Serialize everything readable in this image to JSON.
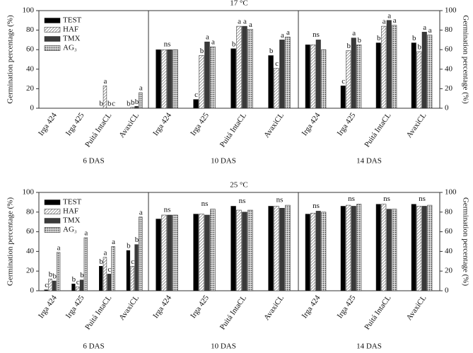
{
  "chart_data": [
    {
      "type": "bar",
      "xlabel": "6 DAS",
      "ylabel": "Germination percentage (%)",
      "y_axis_side": "left",
      "legend": "upper left",
      "categories": [
        "Irga 424",
        "Irga 425",
        "Puitá IntaCL",
        "AvaxiCL"
      ],
      "series": [
        {
          "name": "TEST",
          "color": "#000000",
          "values": [
            0,
            0,
            0,
            0
          ],
          "letters": [
            null,
            null,
            "b",
            "b"
          ]
        },
        {
          "name": "HAF",
          "color": "#c4c4c4",
          "values": [
            0,
            0,
            23,
            1
          ],
          "letters": [
            null,
            null,
            "a",
            "b"
          ]
        },
        {
          "name": "TMX",
          "color": "#3a3a3a",
          "values": [
            0,
            0,
            0,
            2
          ],
          "letters": [
            null,
            null,
            "b",
            "b"
          ]
        },
        {
          "name": "AG₃",
          "color": "#9a9a9a",
          "values": [
            0,
            0,
            0,
            16
          ],
          "letters": [
            null,
            null,
            "c",
            "a"
          ]
        }
      ],
      "group_letters": [
        null,
        null,
        null,
        null
      ],
      "ylim": [
        0,
        100
      ],
      "yticks": [
        0,
        20,
        40,
        60,
        80,
        100
      ]
    },
    {
      "type": "bar",
      "title": "17 °C",
      "xlabel": "10 DAS",
      "categories": [
        "Irga 424",
        "Irga 425",
        "Puitá IntaCL",
        "AvaxiCL"
      ],
      "series": [
        {
          "name": "TEST",
          "color": "#000000",
          "values": [
            60,
            9,
            61,
            54
          ],
          "letters": [
            null,
            "c",
            "b",
            "b"
          ]
        },
        {
          "name": "HAF",
          "color": "#c4c4c4",
          "values": [
            60,
            54,
            84,
            41
          ],
          "letters": [
            null,
            "b",
            "a",
            "c"
          ]
        },
        {
          "name": "TMX",
          "color": "#3a3a3a",
          "values": [
            60,
            68,
            84,
            70
          ],
          "letters": [
            null,
            "a",
            "a",
            "a"
          ]
        },
        {
          "name": "AG₃",
          "color": "#9a9a9a",
          "values": [
            60,
            63,
            81,
            73
          ],
          "letters": [
            null,
            "a",
            "a",
            "a"
          ]
        }
      ],
      "group_letters": [
        "ns",
        null,
        null,
        null
      ],
      "ylim": [
        0,
        100
      ]
    },
    {
      "type": "bar",
      "xlabel": "14 DAS",
      "ylabel": "Germination percentage (%)",
      "y_axis_side": "right",
      "categories": [
        "Irga 424",
        "Irga 425",
        "Puitá IntaCL",
        "AvaxiCL"
      ],
      "series": [
        {
          "name": "TEST",
          "color": "#000000",
          "values": [
            65,
            23,
            67,
            67
          ],
          "letters": [
            null,
            "c",
            "b",
            "b"
          ]
        },
        {
          "name": "HAF",
          "color": "#c4c4c4",
          "values": [
            65,
            59,
            84,
            58
          ],
          "letters": [
            null,
            "b",
            "a",
            "b"
          ]
        },
        {
          "name": "TMX",
          "color": "#3a3a3a",
          "values": [
            70,
            72,
            90,
            78
          ],
          "letters": [
            null,
            "a",
            "a",
            "a"
          ]
        },
        {
          "name": "AG₃",
          "color": "#9a9a9a",
          "values": [
            60,
            65,
            85,
            75
          ],
          "letters": [
            null,
            "b",
            "a",
            "a"
          ]
        }
      ],
      "group_letters": [
        "ns",
        null,
        null,
        null
      ],
      "ylim": [
        0,
        100
      ],
      "yticks": [
        0,
        20,
        40,
        60,
        80,
        100
      ]
    },
    {
      "type": "bar",
      "xlabel": "6 DAS",
      "ylabel": "Germination percentage (%)",
      "y_axis_side": "left",
      "legend": "upper left",
      "categories": [
        "Irga 424",
        "Irga 425",
        "Puitá IntaCL",
        "AvaxiCL"
      ],
      "series": [
        {
          "name": "TEST",
          "color": "#000000",
          "values": [
            1,
            7,
            25,
            41
          ],
          "letters": [
            "c",
            "b",
            "b",
            "b"
          ]
        },
        {
          "name": "HAF",
          "color": "#c4c4c4",
          "values": [
            12,
            4,
            34,
            25
          ],
          "letters": [
            "b",
            "c",
            "a",
            "c"
          ]
        },
        {
          "name": "TMX",
          "color": "#3a3a3a",
          "values": [
            10,
            11,
            17,
            47
          ],
          "letters": [
            "b",
            "b",
            "c",
            "b"
          ]
        },
        {
          "name": "AG₃",
          "color": "#9a9a9a",
          "values": [
            39,
            54,
            45,
            75
          ],
          "letters": [
            "a",
            "a",
            "a",
            "a"
          ]
        }
      ],
      "group_letters": [
        null,
        null,
        null,
        null
      ],
      "ylim": [
        0,
        100
      ],
      "yticks": [
        0,
        20,
        40,
        60,
        80,
        100
      ]
    },
    {
      "type": "bar",
      "title": "25 °C",
      "xlabel": "10 DAS",
      "categories": [
        "Irga 424",
        "Irga 425",
        "Puitá IntaCL",
        "AvaxiCL"
      ],
      "series": [
        {
          "name": "TEST",
          "color": "#000000",
          "values": [
            73,
            78,
            86,
            86
          ],
          "letters": [
            null,
            null,
            null,
            null
          ]
        },
        {
          "name": "HAF",
          "color": "#c4c4c4",
          "values": [
            77,
            78,
            82,
            86
          ],
          "letters": [
            null,
            null,
            null,
            null
          ]
        },
        {
          "name": "TMX",
          "color": "#3a3a3a",
          "values": [
            77,
            77,
            80,
            84
          ],
          "letters": [
            null,
            null,
            null,
            null
          ]
        },
        {
          "name": "AG₃",
          "color": "#9a9a9a",
          "values": [
            77,
            83,
            82,
            87
          ],
          "letters": [
            null,
            null,
            null,
            null
          ]
        }
      ],
      "group_letters": [
        "ns",
        "ns",
        "ns",
        "ns"
      ],
      "ylim": [
        0,
        100
      ]
    },
    {
      "type": "bar",
      "xlabel": "14 DAS",
      "ylabel": "Germination percentage (%)",
      "y_axis_side": "right",
      "categories": [
        "Irga 424",
        "Irga 425",
        "Puitá IntaCL",
        "AvaxiCL"
      ],
      "series": [
        {
          "name": "TEST",
          "color": "#000000",
          "values": [
            78,
            86,
            88,
            88
          ],
          "letters": [
            null,
            null,
            null,
            null
          ]
        },
        {
          "name": "HAF",
          "color": "#c4c4c4",
          "values": [
            79,
            87,
            88,
            86
          ],
          "letters": [
            null,
            null,
            null,
            null
          ]
        },
        {
          "name": "TMX",
          "color": "#3a3a3a",
          "values": [
            81,
            86,
            83,
            86
          ],
          "letters": [
            null,
            null,
            null,
            null
          ]
        },
        {
          "name": "AG₃",
          "color": "#9a9a9a",
          "values": [
            80,
            88,
            83,
            87
          ],
          "letters": [
            null,
            null,
            null,
            null
          ]
        }
      ],
      "group_letters": [
        "ns",
        "ns",
        "ns",
        "ns"
      ],
      "ylim": [
        0,
        100
      ],
      "yticks": [
        0,
        20,
        40,
        60,
        80,
        100
      ]
    }
  ]
}
